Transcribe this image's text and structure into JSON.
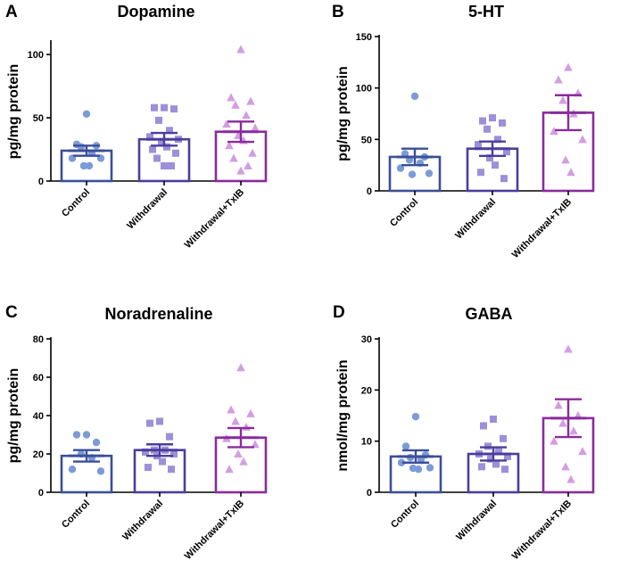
{
  "categories": [
    "Control",
    "Withdrawal",
    "Withdrawal+TxIB"
  ],
  "colors": {
    "bars": [
      "#3a4f9a",
      "#4c3d9d",
      "#8a2b9c"
    ],
    "points": [
      "#7b9bd6",
      "#9d8fd8",
      "#d39de2"
    ],
    "markers": [
      "circle",
      "square",
      "triangle"
    ]
  },
  "chart_data": [
    {
      "panel": "A",
      "type": "bar",
      "title": "Dopamine",
      "ylabel": "pg/mg protein",
      "ylim": [
        0,
        110
      ],
      "yticks": [
        0,
        50,
        100
      ],
      "categories": [
        "Control",
        "Withdrawal",
        "Withdrawal+TxIB"
      ],
      "values": [
        24,
        33,
        39
      ],
      "errors": [
        4,
        5,
        8
      ],
      "points": [
        [
          53,
          29,
          28,
          27,
          22,
          18,
          18,
          12,
          12
        ],
        [
          58,
          58,
          57,
          48,
          40,
          35,
          33,
          30,
          27,
          25,
          22,
          18,
          12,
          12
        ],
        [
          104,
          66,
          63,
          60,
          52,
          45,
          42,
          36,
          32,
          28,
          22,
          18,
          12,
          8
        ]
      ]
    },
    {
      "panel": "B",
      "type": "bar",
      "title": "5-HT",
      "ylabel": "pg/mg protein",
      "ylim": [
        0,
        150
      ],
      "yticks": [
        0,
        50,
        100,
        150
      ],
      "categories": [
        "Control",
        "Withdrawal",
        "Withdrawal+TxIB"
      ],
      "values": [
        33,
        41,
        76
      ],
      "errors": [
        8,
        7,
        17
      ],
      "points": [
        [
          92,
          36,
          33,
          30,
          27,
          22,
          17,
          16
        ],
        [
          71,
          68,
          66,
          60,
          50,
          45,
          38,
          32,
          25,
          18,
          12
        ],
        [
          120,
          108,
          95,
          88,
          75,
          58,
          50,
          30,
          18
        ]
      ]
    },
    {
      "panel": "C",
      "type": "bar",
      "title": "Noradrenaline",
      "ylabel": "pg/mg protein",
      "ylim": [
        0,
        80
      ],
      "yticks": [
        0,
        20,
        40,
        60,
        80
      ],
      "categories": [
        "Control",
        "Withdrawal",
        "Withdrawal+TxIB"
      ],
      "values": [
        19,
        22,
        28.5
      ],
      "errors": [
        3,
        3,
        5
      ],
      "points": [
        [
          30,
          30,
          26,
          20,
          18,
          12,
          11
        ],
        [
          37,
          36,
          29,
          22,
          22,
          21,
          20,
          19,
          16,
          13,
          12
        ],
        [
          65,
          43,
          41,
          37,
          34,
          28,
          25,
          20,
          16,
          12
        ]
      ]
    },
    {
      "panel": "D",
      "type": "bar",
      "title": "GABA",
      "ylabel": "nmol/mg protein",
      "ylim": [
        0,
        30
      ],
      "yticks": [
        0,
        10,
        20,
        30
      ],
      "categories": [
        "Control",
        "Withdrawal",
        "Withdrawal+TxIB"
      ],
      "values": [
        7,
        7.5,
        14.5
      ],
      "errors": [
        1.2,
        1.3,
        3.7
      ],
      "points": [
        [
          14.8,
          9,
          7.3,
          6.8,
          6.5,
          5.8,
          4.8,
          4.7,
          4.5
        ],
        [
          14.3,
          13,
          10.5,
          9,
          8,
          7.5,
          7,
          6.5,
          5.5,
          5,
          4.5
        ],
        [
          28,
          17,
          15,
          13.5,
          12,
          10,
          8,
          5,
          2.5
        ]
      ]
    }
  ]
}
